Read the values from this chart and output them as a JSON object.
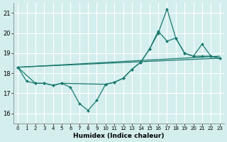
{
  "xlabel": "Humidex (Indice chaleur)",
  "bg_color": "#d4eeee",
  "grid_color": "#ffffff",
  "line_color": "#1a7a6e",
  "xlim": [
    -0.5,
    23.5
  ],
  "ylim": [
    15.5,
    21.5
  ],
  "yticks": [
    16,
    17,
    18,
    19,
    20,
    21
  ],
  "xticks": [
    0,
    1,
    2,
    3,
    4,
    5,
    6,
    7,
    8,
    9,
    10,
    11,
    12,
    13,
    14,
    15,
    16,
    17,
    18,
    19,
    20,
    21,
    22,
    23
  ],
  "line1_x": [
    0,
    1,
    2,
    3,
    4,
    5,
    6,
    7,
    8,
    9,
    10,
    11,
    12,
    13,
    14,
    15,
    16,
    17,
    18,
    19,
    20,
    21,
    22,
    23
  ],
  "line1_y": [
    18.3,
    17.6,
    17.5,
    17.5,
    17.4,
    17.5,
    17.3,
    16.5,
    16.15,
    16.65,
    17.45,
    17.55,
    17.75,
    18.2,
    18.55,
    19.2,
    20.0,
    21.2,
    19.75,
    19.0,
    18.85,
    19.45,
    18.85,
    18.75
  ],
  "line2_x": [
    0,
    2,
    3,
    4,
    5,
    10,
    11,
    12,
    13,
    14,
    15,
    16,
    17,
    18,
    19,
    20,
    21,
    22,
    23
  ],
  "line2_y": [
    18.3,
    17.5,
    17.5,
    17.4,
    17.5,
    17.45,
    17.55,
    17.75,
    18.2,
    18.55,
    19.2,
    20.1,
    19.6,
    19.75,
    19.0,
    18.85,
    18.85,
    18.85,
    18.75
  ],
  "line3_x": [
    0,
    23
  ],
  "line3_y": [
    18.3,
    18.75
  ],
  "line4_x": [
    0,
    23
  ],
  "line4_y": [
    18.3,
    18.85
  ]
}
